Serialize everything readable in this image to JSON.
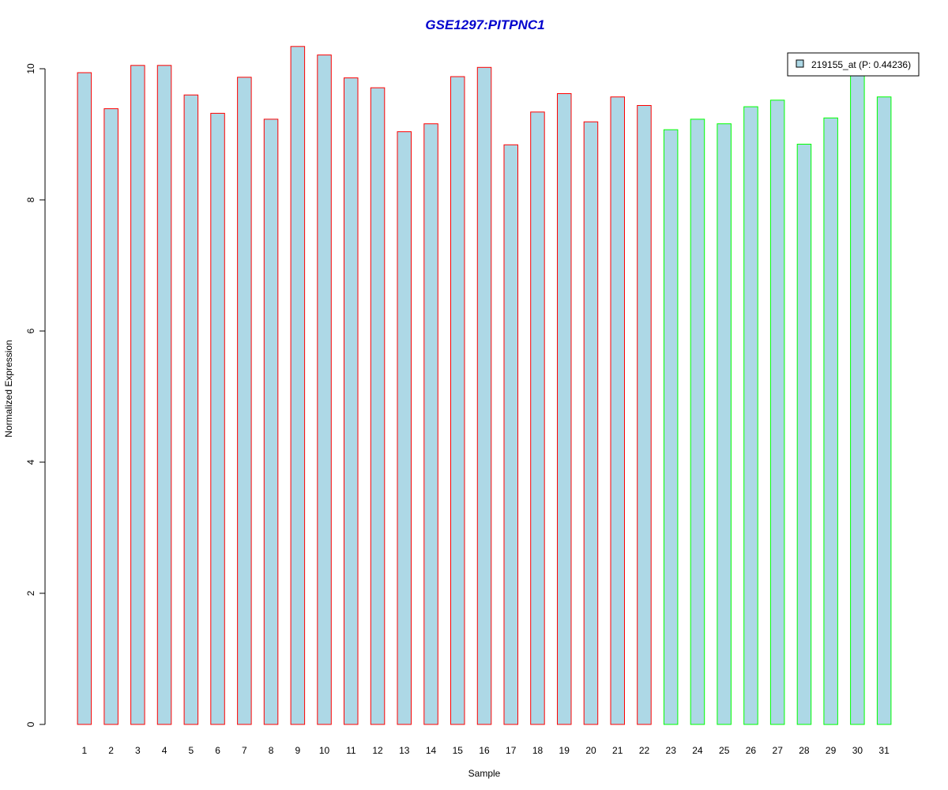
{
  "colors": {
    "bar_fill": "#add8e6",
    "group1_border": "#ff0000",
    "group2_border": "#00ff00",
    "title": "#0000cd",
    "axis": "#000000"
  },
  "chart_data": {
    "type": "bar",
    "title": "GSE1297:PITPNC1",
    "xlabel": "Sample",
    "ylabel": "Normalized Expression",
    "ylim": [
      0,
      10
    ],
    "y_ticks": [
      0,
      2,
      4,
      6,
      8,
      10
    ],
    "grid": false,
    "legend_position": "top-right",
    "categories": [
      "1",
      "2",
      "3",
      "4",
      "5",
      "6",
      "7",
      "8",
      "9",
      "10",
      "11",
      "12",
      "13",
      "14",
      "15",
      "16",
      "17",
      "18",
      "19",
      "20",
      "21",
      "22",
      "23",
      "24",
      "25",
      "26",
      "27",
      "28",
      "29",
      "30",
      "31"
    ],
    "series": [
      {
        "name": "219155_at (P: 0.44236)",
        "values": [
          9.94,
          9.39,
          10.05,
          10.05,
          9.6,
          9.32,
          9.87,
          9.23,
          10.34,
          10.21,
          9.86,
          9.71,
          9.04,
          9.16,
          9.88,
          10.02,
          8.84,
          9.34,
          9.62,
          9.19,
          9.57,
          9.44,
          9.07,
          9.23,
          9.16,
          9.42,
          9.52,
          8.85,
          9.25,
          9.93,
          9.57
        ],
        "group": [
          1,
          1,
          1,
          1,
          1,
          1,
          1,
          1,
          1,
          1,
          1,
          1,
          1,
          1,
          1,
          1,
          1,
          1,
          1,
          1,
          1,
          1,
          2,
          2,
          2,
          2,
          2,
          2,
          2,
          2,
          2
        ]
      }
    ]
  }
}
